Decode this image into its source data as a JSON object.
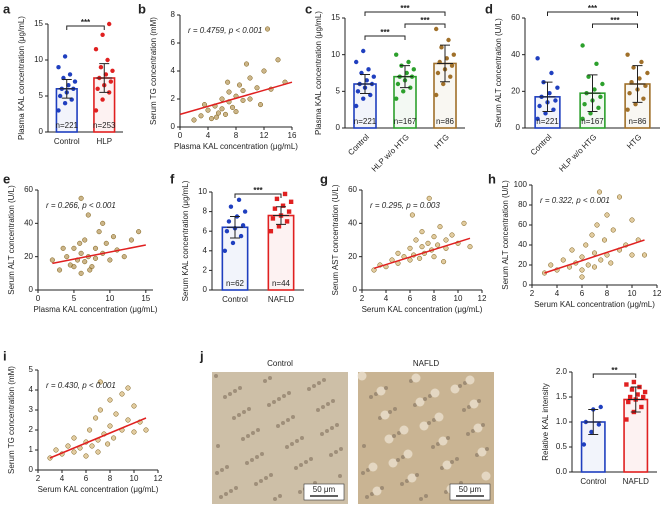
{
  "chart_data": [
    {
      "label": "a",
      "type": "bar",
      "ylabel": "Plasma KAL concentration (μg/mL)",
      "categories": [
        "Control",
        "HLP"
      ],
      "colors": [
        "#1f3fbf",
        "#e02020"
      ],
      "values": [
        6.0,
        7.5
      ],
      "errors": [
        1.3,
        2.0
      ],
      "points": [
        [
          3,
          4,
          4.5,
          5,
          5.5,
          6,
          6,
          6.5,
          7,
          7.5,
          8,
          9,
          10.5
        ],
        [
          3,
          4.5,
          5.5,
          6,
          6.5,
          7,
          7.5,
          8,
          8.5,
          9,
          10,
          11.5,
          13.5,
          15
        ]
      ],
      "n_labels": [
        "n=221",
        "n=253"
      ],
      "significance": [
        {
          "from": "Control",
          "to": "HLP",
          "label": "***"
        }
      ],
      "ylim": [
        0,
        15
      ],
      "yticks": [
        0,
        5,
        10,
        15
      ]
    },
    {
      "label": "b",
      "type": "scatter",
      "xlabel": "Plasma KAL concentration (μg/mL)",
      "ylabel": "Serum TG concentration (mM)",
      "annotation": "r = 0.4759, p < 0.001",
      "color": "#a07828",
      "x": [
        3,
        4,
        4.5,
        5,
        5.5,
        6,
        6,
        6.5,
        7,
        7,
        7.5,
        8,
        8,
        8.5,
        9,
        9,
        10,
        10,
        11,
        12,
        12.5,
        13,
        14,
        3.5,
        5.2,
        6.8,
        9.5,
        11.5,
        15,
        2
      ],
      "y": [
        0.8,
        1.2,
        0.6,
        1.5,
        1.0,
        2.0,
        1.3,
        0.9,
        1.8,
        2.5,
        1.4,
        2.2,
        1.1,
        3.0,
        1.9,
        2.6,
        3.5,
        2.0,
        2.8,
        4.0,
        7.0,
        2.7,
        4.8,
        1.6,
        0.7,
        3.2,
        4.5,
        1.6,
        3.2,
        0.5
      ],
      "fit": {
        "color": "#e02020",
        "x": [
          0,
          16
        ],
        "y": [
          0.9,
          3.2
        ]
      },
      "xlim": [
        0,
        16
      ],
      "xticks": [
        0,
        4,
        8,
        12,
        16
      ],
      "ylim": [
        0,
        8
      ],
      "yticks": [
        0,
        2,
        4,
        6,
        8
      ]
    },
    {
      "label": "c",
      "type": "bar",
      "ylabel": "Plasma KAL concentration (μg/mL)",
      "categories": [
        "Control",
        "HLP w/o HTG",
        "HTG"
      ],
      "colors": [
        "#1f3fbf",
        "#2ca02c",
        "#a0702a"
      ],
      "values": [
        6.0,
        7.0,
        8.8
      ],
      "errors": [
        1.3,
        1.5,
        2.5
      ],
      "points": [
        [
          3,
          4,
          4.5,
          5,
          5.5,
          6,
          6,
          6.5,
          7,
          7.5,
          8,
          9,
          10.5
        ],
        [
          4,
          5,
          5.5,
          6,
          6.5,
          7,
          7,
          7.5,
          8,
          8.5,
          9,
          10
        ],
        [
          4.5,
          6,
          7,
          7.5,
          8,
          8.5,
          9,
          9.5,
          10,
          11,
          12,
          13.5
        ]
      ],
      "n_labels": [
        "n=221",
        "n=167",
        "n=86"
      ],
      "significance": [
        {
          "from": "Control",
          "to": "HLP w/o HTG",
          "label": "***"
        },
        {
          "from": "HLP w/o HTG",
          "to": "HTG",
          "label": "***"
        },
        {
          "from": "Control",
          "to": "HTG",
          "label": "***"
        }
      ],
      "ylim": [
        0,
        15
      ],
      "yticks": [
        0,
        5,
        10,
        15
      ]
    },
    {
      "label": "d",
      "type": "bar",
      "ylabel": "Serum ALT concentration (U/L)",
      "categories": [
        "Control",
        "HLP w/o HTG",
        "HTG"
      ],
      "colors": [
        "#1f3fbf",
        "#2ca02c",
        "#a0702a"
      ],
      "values": [
        17,
        19,
        24
      ],
      "errors": [
        8,
        10,
        10
      ],
      "points": [
        [
          5,
          8,
          10,
          12,
          14,
          15,
          17,
          19,
          22,
          25,
          30,
          38
        ],
        [
          5,
          8,
          11,
          13,
          15,
          17,
          19,
          21,
          24,
          28,
          35,
          45
        ],
        [
          10,
          13,
          16,
          19,
          21,
          23,
          25,
          27,
          30,
          33,
          36,
          40
        ]
      ],
      "n_labels": [
        "n=221",
        "n=167",
        "n=86"
      ],
      "significance": [
        {
          "from": "HLP w/o HTG",
          "to": "HTG",
          "label": "***"
        },
        {
          "from": "Control",
          "to": "HTG",
          "label": "***"
        }
      ],
      "ylim": [
        0,
        60
      ],
      "yticks": [
        0,
        20,
        40,
        60
      ]
    },
    {
      "label": "e",
      "type": "scatter",
      "xlabel": "Plasma KAL concentration (μg/mL)",
      "ylabel": "Serum ALT concentration (U/L)",
      "annotation": "r = 0.266, p < 0.001",
      "color": "#a07828",
      "x": [
        2,
        3,
        4,
        4.5,
        5,
        5,
        5.5,
        6,
        6,
        6.5,
        6.5,
        7,
        7,
        7.5,
        8,
        8,
        8.5,
        9,
        9.5,
        10,
        10.5,
        11,
        12,
        13,
        14,
        6,
        3.5,
        7.2,
        9,
        5.8
      ],
      "y": [
        18,
        12,
        20,
        15,
        25,
        14,
        18,
        22,
        10,
        30,
        17,
        20,
        45,
        14,
        25,
        19,
        35,
        22,
        28,
        18,
        32,
        24,
        20,
        30,
        35,
        55,
        25,
        12,
        40,
        28
      ],
      "fit": {
        "color": "#e02020",
        "x": [
          2,
          15
        ],
        "y": [
          16,
          27
        ]
      },
      "xlim": [
        0,
        16
      ],
      "xticks": [
        0,
        5,
        10,
        15
      ],
      "ylim": [
        0,
        60
      ],
      "yticks": [
        0,
        20,
        40,
        60
      ]
    },
    {
      "label": "f",
      "type": "bar",
      "ylabel": "Serum KAL concentration (μg/mL)",
      "categories": [
        "Control",
        "NAFLD"
      ],
      "colors": [
        "#1f3fbf",
        "#e02020"
      ],
      "markers": [
        "circle",
        "square"
      ],
      "values": [
        6.4,
        7.6
      ],
      "errors": [
        1.1,
        0.9
      ],
      "points": [
        [
          4,
          4.8,
          5.5,
          6,
          6.3,
          6.6,
          7,
          7.5,
          8,
          8.5,
          9.2
        ],
        [
          6,
          6.5,
          7,
          7.3,
          7.6,
          8,
          8.3,
          8.6,
          9,
          9.3,
          9.8
        ]
      ],
      "n_labels": [
        "n=62",
        "n=44"
      ],
      "significance": [
        {
          "from": "Control",
          "to": "NAFLD",
          "label": "***"
        }
      ],
      "ylim": [
        0,
        10
      ],
      "yticks": [
        0,
        2,
        4,
        6,
        8,
        10
      ]
    },
    {
      "label": "g",
      "type": "scatter",
      "xlabel": "Serum KAL concentration (μg/mL)",
      "ylabel": "Serum AST concentration (U/L)",
      "annotation": "r = 0.295, p = 0.003",
      "color": "#c8a050",
      "x": [
        3,
        3.5,
        4,
        4.5,
        5,
        5,
        5.5,
        6,
        6,
        6.3,
        6.5,
        6.8,
        7,
        7,
        7.2,
        7.5,
        7.8,
        8,
        8,
        8.3,
        8.5,
        9,
        9,
        9.5,
        10,
        10.5,
        11,
        7.6,
        6.2,
        8.8
      ],
      "y": [
        12,
        15,
        14,
        18,
        16,
        22,
        20,
        18,
        25,
        21,
        30,
        19,
        26,
        35,
        22,
        28,
        24,
        32,
        20,
        27,
        38,
        25,
        30,
        33,
        28,
        40,
        26,
        55,
        45,
        17
      ],
      "fit": {
        "color": "#e02020",
        "x": [
          3,
          11
        ],
        "y": [
          13,
          31
        ]
      },
      "xlim": [
        2,
        12
      ],
      "xticks": [
        2,
        4,
        6,
        8,
        10,
        12
      ],
      "ylim": [
        0,
        60
      ],
      "yticks": [
        0,
        20,
        40,
        60
      ]
    },
    {
      "label": "h",
      "type": "scatter",
      "xlabel": "Serum KAL concentration (μg/mL)",
      "ylabel": "Serum ALT concentration (U/L)",
      "annotation": "r = 0.322, p < 0.001",
      "color": "#c8a050",
      "x": [
        3,
        3.5,
        4,
        4.5,
        5,
        5.2,
        5.5,
        6,
        6,
        6.3,
        6.5,
        6.8,
        7,
        7,
        7.2,
        7.5,
        7.8,
        8,
        8,
        8.3,
        8.5,
        9,
        9,
        9.5,
        10,
        10,
        10.5,
        11,
        7.4,
        6
      ],
      "y": [
        12,
        20,
        15,
        25,
        18,
        35,
        22,
        28,
        15,
        40,
        20,
        50,
        32,
        18,
        60,
        25,
        45,
        30,
        70,
        22,
        55,
        35,
        88,
        40,
        30,
        65,
        45,
        30,
        93,
        8
      ],
      "fit": {
        "color": "#e02020",
        "x": [
          3,
          11
        ],
        "y": [
          12,
          45
        ]
      },
      "xlim": [
        2,
        12
      ],
      "xticks": [
        2,
        4,
        6,
        8,
        10,
        12
      ],
      "ylim": [
        0,
        100
      ],
      "yticks": [
        0,
        20,
        40,
        60,
        80,
        100
      ]
    },
    {
      "label": "i",
      "type": "scatter",
      "xlabel": "Serum KAL concentration (μg/mL)",
      "ylabel": "Serum TG concentration (mM)",
      "annotation": "r = 0.430, p < 0.001",
      "color": "#c8a050",
      "x": [
        3,
        3.5,
        4,
        4.5,
        5,
        5,
        5.5,
        6,
        6,
        6.3,
        6.5,
        6.8,
        7,
        7,
        7.2,
        7.5,
        7.8,
        8,
        8,
        8.3,
        8.5,
        9,
        9,
        9.5,
        10,
        10,
        10.5,
        11,
        7.2,
        9.5
      ],
      "y": [
        0.6,
        1.0,
        0.8,
        1.2,
        0.9,
        1.6,
        1.1,
        1.4,
        0.7,
        2.0,
        1.2,
        2.6,
        1.5,
        0.9,
        3.0,
        1.8,
        1.3,
        2.2,
        3.5,
        1.6,
        2.8,
        2.0,
        3.8,
        2.5,
        1.9,
        3.2,
        2.4,
        2.0,
        4.4,
        4.1
      ],
      "fit": {
        "color": "#e02020",
        "x": [
          3,
          11
        ],
        "y": [
          0.6,
          2.6
        ]
      },
      "xlim": [
        2,
        12
      ],
      "xticks": [
        2,
        4,
        6,
        8,
        10,
        12
      ],
      "ylim": [
        0,
        5
      ],
      "yticks": [
        0,
        1,
        2,
        3,
        4,
        5
      ]
    },
    {
      "label": "j",
      "type": "bar",
      "images": [
        {
          "title": "Control",
          "scale_bar": "50 μm"
        },
        {
          "title": "NAFLD",
          "scale_bar": "50 μm"
        }
      ],
      "ylabel": "Relative KAL intensity",
      "categories": [
        "Control",
        "NAFLD"
      ],
      "colors": [
        "#1f3fbf",
        "#e02020"
      ],
      "markers": [
        "circle",
        "square"
      ],
      "values": [
        1.0,
        1.45
      ],
      "errors": [
        0.25,
        0.25
      ],
      "points": [
        [
          0.55,
          0.8,
          0.95,
          1.0,
          1.25,
          1.3
        ],
        [
          1.05,
          1.2,
          1.3,
          1.4,
          1.45,
          1.5,
          1.5,
          1.55,
          1.6,
          1.65,
          1.7,
          1.75,
          1.8
        ]
      ],
      "significance": [
        {
          "from": "Control",
          "to": "NAFLD",
          "label": "**"
        }
      ],
      "ylim": [
        0,
        2.0
      ],
      "yticks": [
        {
          "value": 0,
          "label": "0.0"
        },
        0.5,
        {
          "value": 1,
          "label": "1.0"
        },
        1.5,
        {
          "value": 2,
          "label": "2.0"
        }
      ]
    }
  ]
}
